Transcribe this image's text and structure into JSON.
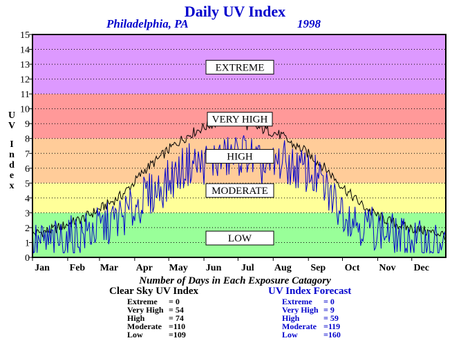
{
  "title": "Daily UV Index",
  "subtitle_location": "Philadelphia, PA",
  "subtitle_year": "1998",
  "ylabel": "UV Index",
  "caption": "Number of Days in Each Exposure Catagory",
  "colors": {
    "low": "#99ff99",
    "moderate": "#ffff99",
    "high": "#ffcc99",
    "very_high": "#ff9999",
    "extreme": "#dd99ff",
    "clear_sky_line": "#000000",
    "forecast_line": "#0000cc"
  },
  "chart_data": {
    "type": "line",
    "title": "Daily UV Index",
    "ylabel": "UV Index",
    "xlabel": "",
    "ylim": [
      0,
      15
    ],
    "yticks": [
      0,
      1,
      2,
      3,
      4,
      5,
      6,
      7,
      8,
      9,
      10,
      11,
      12,
      13,
      14,
      15
    ],
    "xlim": [
      1,
      365
    ],
    "months": [
      {
        "label": "Jan",
        "day": 1
      },
      {
        "label": "Feb",
        "day": 32
      },
      {
        "label": "Mar",
        "day": 60
      },
      {
        "label": "Apr",
        "day": 91
      },
      {
        "label": "May",
        "day": 121
      },
      {
        "label": "Jun",
        "day": 152
      },
      {
        "label": "Jul",
        "day": 182
      },
      {
        "label": "Aug",
        "day": 213
      },
      {
        "label": "Sep",
        "day": 244
      },
      {
        "label": "Oct",
        "day": 274
      },
      {
        "label": "Nov",
        "day": 305
      },
      {
        "label": "Dec",
        "day": 335
      }
    ],
    "grid": "horizontal dotted",
    "bands": [
      {
        "label": "LOW",
        "from": 0,
        "to": 3
      },
      {
        "label": "MODERATE",
        "from": 3,
        "to": 5
      },
      {
        "label": "HIGH",
        "from": 5,
        "to": 8
      },
      {
        "label": "VERY HIGH",
        "from": 8,
        "to": 11
      },
      {
        "label": "EXTREME",
        "from": 11,
        "to": 15
      }
    ],
    "series": [
      {
        "name": "Clear Sky UV Index",
        "x": [
          1,
          10,
          20,
          31,
          45,
          59,
          70,
          80,
          90,
          100,
          110,
          120,
          130,
          140,
          150,
          160,
          170,
          180,
          190,
          200,
          210,
          220,
          230,
          240,
          250,
          260,
          270,
          280,
          290,
          300,
          310,
          320,
          330,
          340,
          350,
          360,
          365
        ],
        "y": [
          1.6,
          1.7,
          1.9,
          2.2,
          2.6,
          3.2,
          3.7,
          4.2,
          5.0,
          5.9,
          6.5,
          7.2,
          7.8,
          8.3,
          8.7,
          9.0,
          9.1,
          9.1,
          8.9,
          8.7,
          8.5,
          8.2,
          7.6,
          7.2,
          6.6,
          5.9,
          5.1,
          4.3,
          3.6,
          3.0,
          2.6,
          2.3,
          2.0,
          1.9,
          1.7,
          1.6,
          1.5
        ]
      },
      {
        "name": "UV Index Forecast",
        "x": [
          1,
          10,
          20,
          31,
          45,
          59,
          70,
          80,
          90,
          100,
          110,
          120,
          130,
          140,
          150,
          160,
          170,
          180,
          190,
          200,
          210,
          220,
          230,
          240,
          250,
          260,
          270,
          280,
          290,
          300,
          310,
          320,
          330,
          340,
          350,
          360,
          365
        ],
        "y": [
          1.0,
          1.1,
          1.2,
          1.4,
          1.7,
          2.1,
          2.5,
          2.9,
          3.4,
          4.2,
          4.6,
          5.2,
          5.9,
          6.5,
          6.4,
          6.7,
          6.8,
          7.0,
          7.2,
          6.3,
          6.1,
          6.7,
          6.2,
          6.0,
          5.6,
          4.6,
          3.7,
          3.0,
          2.4,
          2.2,
          1.9,
          1.6,
          1.3,
          1.2,
          1.1,
          0.9,
          0.8
        ]
      }
    ],
    "counts": {
      "clear_sky": {
        "title": "Clear Sky UV Index",
        "rows": [
          {
            "label": "Extreme",
            "value": "=    0"
          },
          {
            "label": "Very High",
            "value": "=  54"
          },
          {
            "label": "High",
            "value": "=  74"
          },
          {
            "label": "Moderate",
            "value": "=110"
          },
          {
            "label": "Low",
            "value": "=109"
          }
        ]
      },
      "forecast": {
        "title": "UV Index Forecast",
        "rows": [
          {
            "label": "Extreme",
            "value": "=    0"
          },
          {
            "label": "Very High",
            "value": "=    9"
          },
          {
            "label": "High",
            "value": "=  59"
          },
          {
            "label": "Moderate",
            "value": "=119"
          },
          {
            "label": "Low",
            "value": "=160"
          }
        ]
      }
    }
  }
}
